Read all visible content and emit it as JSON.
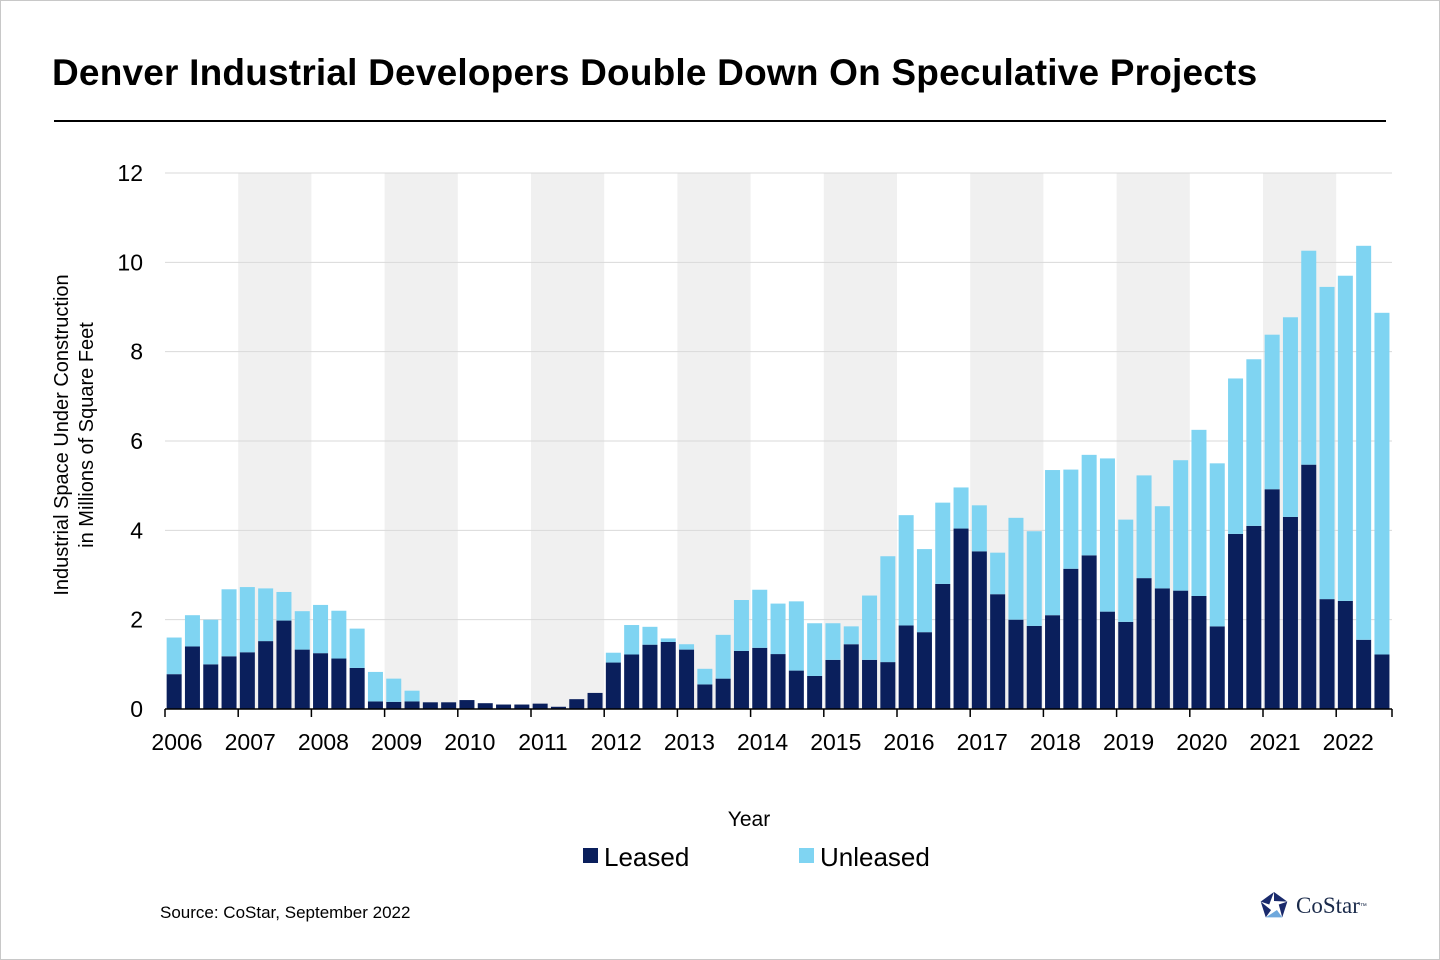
{
  "chart_data": {
    "type": "bar",
    "stacked": true,
    "title": "Denver Industrial Developers Double Down On Speculative Projects",
    "xlabel": "Year",
    "ylabel_lines": [
      "Industrial Space Under Construction",
      "in Millions of Square Feet"
    ],
    "ylim": [
      0,
      12
    ],
    "yticks": [
      0,
      2,
      4,
      6,
      8,
      10,
      12
    ],
    "year_labels": [
      "2006",
      "2007",
      "2008",
      "2009",
      "2010",
      "2011",
      "2012",
      "2013",
      "2014",
      "2015",
      "2016",
      "2017",
      "2018",
      "2019",
      "2020",
      "2021",
      "2022"
    ],
    "quarters_per_year": 4,
    "alternating_year_shading": true,
    "legend_position": "bottom-center",
    "series": [
      {
        "name": "Leased",
        "color": "#0a1f5c",
        "values": [
          0.78,
          1.4,
          1.0,
          1.18,
          1.27,
          1.52,
          1.98,
          1.33,
          1.25,
          1.13,
          0.92,
          0.17,
          0.16,
          0.17,
          0.15,
          0.15,
          0.2,
          0.13,
          0.1,
          0.1,
          0.12,
          0.05,
          0.22,
          0.36,
          1.04,
          1.22,
          1.44,
          1.5,
          1.33,
          0.55,
          0.68,
          1.3,
          1.37,
          1.23,
          0.86,
          0.74,
          1.1,
          1.45,
          1.1,
          1.05,
          1.87,
          1.72,
          2.8,
          4.04,
          3.53,
          2.57,
          2.0,
          1.86,
          2.1,
          3.14,
          3.44,
          2.18,
          1.95,
          2.93,
          2.7,
          2.65,
          2.53,
          1.85,
          3.92,
          4.1,
          4.92,
          4.3,
          5.47,
          2.46,
          2.42,
          1.55,
          1.22
        ]
      },
      {
        "name": "Unleased",
        "color": "#7fd4f2",
        "values": [
          0.82,
          0.7,
          1.0,
          1.5,
          1.46,
          1.18,
          0.64,
          0.86,
          1.08,
          1.07,
          0.88,
          0.66,
          0.52,
          0.24,
          0.0,
          0.0,
          0.0,
          0.0,
          0.0,
          0.0,
          0.0,
          0.0,
          0.0,
          0.0,
          0.22,
          0.66,
          0.4,
          0.08,
          0.12,
          0.35,
          0.98,
          1.14,
          1.3,
          1.13,
          1.55,
          1.18,
          0.82,
          0.4,
          1.44,
          2.37,
          2.47,
          1.86,
          1.82,
          0.92,
          1.03,
          0.93,
          2.28,
          2.12,
          3.25,
          2.22,
          2.25,
          3.43,
          2.29,
          2.3,
          1.84,
          2.92,
          3.72,
          3.65,
          3.48,
          3.73,
          3.46,
          4.47,
          4.79,
          6.99,
          7.28,
          8.82,
          7.65
        ]
      }
    ]
  },
  "source": "Source: CoStar, September 2022",
  "logo": {
    "name": "CoStar",
    "tm": "™"
  }
}
